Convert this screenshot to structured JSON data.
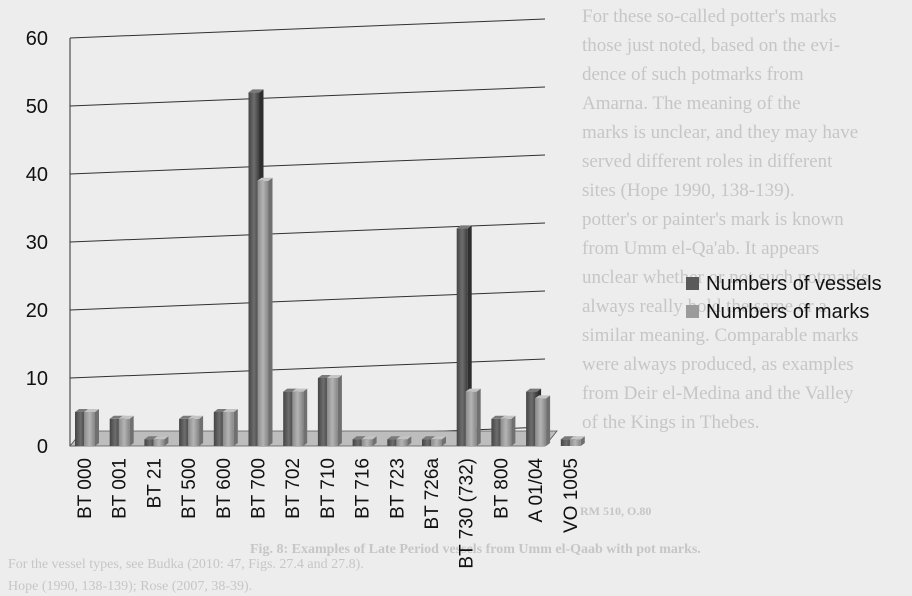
{
  "chart_data": {
    "type": "bar",
    "categories": [
      "BT 000",
      "BT 001",
      "BT 21",
      "BT 500",
      "BT 600",
      "BT 700",
      "BT 702",
      "BT 710",
      "BT 716",
      "BT 723",
      "BT 726a",
      "BT 730 (732)",
      "BT 800",
      "A 01/04",
      "VO 1005"
    ],
    "series": [
      {
        "name": "Numbers of vessels",
        "values": [
          5,
          4,
          1,
          4,
          5,
          52,
          8,
          10,
          1,
          1,
          1,
          32,
          4,
          8,
          1
        ]
      },
      {
        "name": "Numbers of marks",
        "values": [
          5,
          4,
          1,
          4,
          5,
          39,
          8,
          10,
          1,
          1,
          1,
          8,
          4,
          7,
          1
        ]
      }
    ],
    "ylim": [
      0,
      60
    ],
    "yticks": [
      0,
      10,
      20,
      30,
      40,
      50,
      60
    ],
    "grid": true,
    "legend": "right",
    "colors": {
      "vessels": "#5a5a5a",
      "marks": "#9b9b9b"
    }
  },
  "background_text": {
    "lines": [
      "For these so-called potter's marks",
      "those just noted, based on the evi-",
      "dence of such potmarks from",
      "Amarna. The meaning of the",
      "marks is unclear, and they may have",
      "served different roles in different",
      "sites (Hope 1990, 138-139).",
      "potter's or painter's mark is known",
      "from Umm el-Qa'ab. It appears",
      "unclear whether or not such potmarks",
      "always really hold the same or a",
      "similar meaning. Comparable marks",
      "were always produced, as examples",
      "from Deir el-Medina and the Valley",
      "of the Kings in Thebes."
    ],
    "caption": "Fig. 8: Examples of Late Period vessels from Umm el-Qaab with pot marks.",
    "footnote_1": "For the vessel types, see Budka (2010: 47, Figs. 27.4 and 27.8).",
    "footnote_2": "Hope (1990, 138-139); Rose (2007, 38-39).",
    "stamp": "RM 510, O.80"
  }
}
